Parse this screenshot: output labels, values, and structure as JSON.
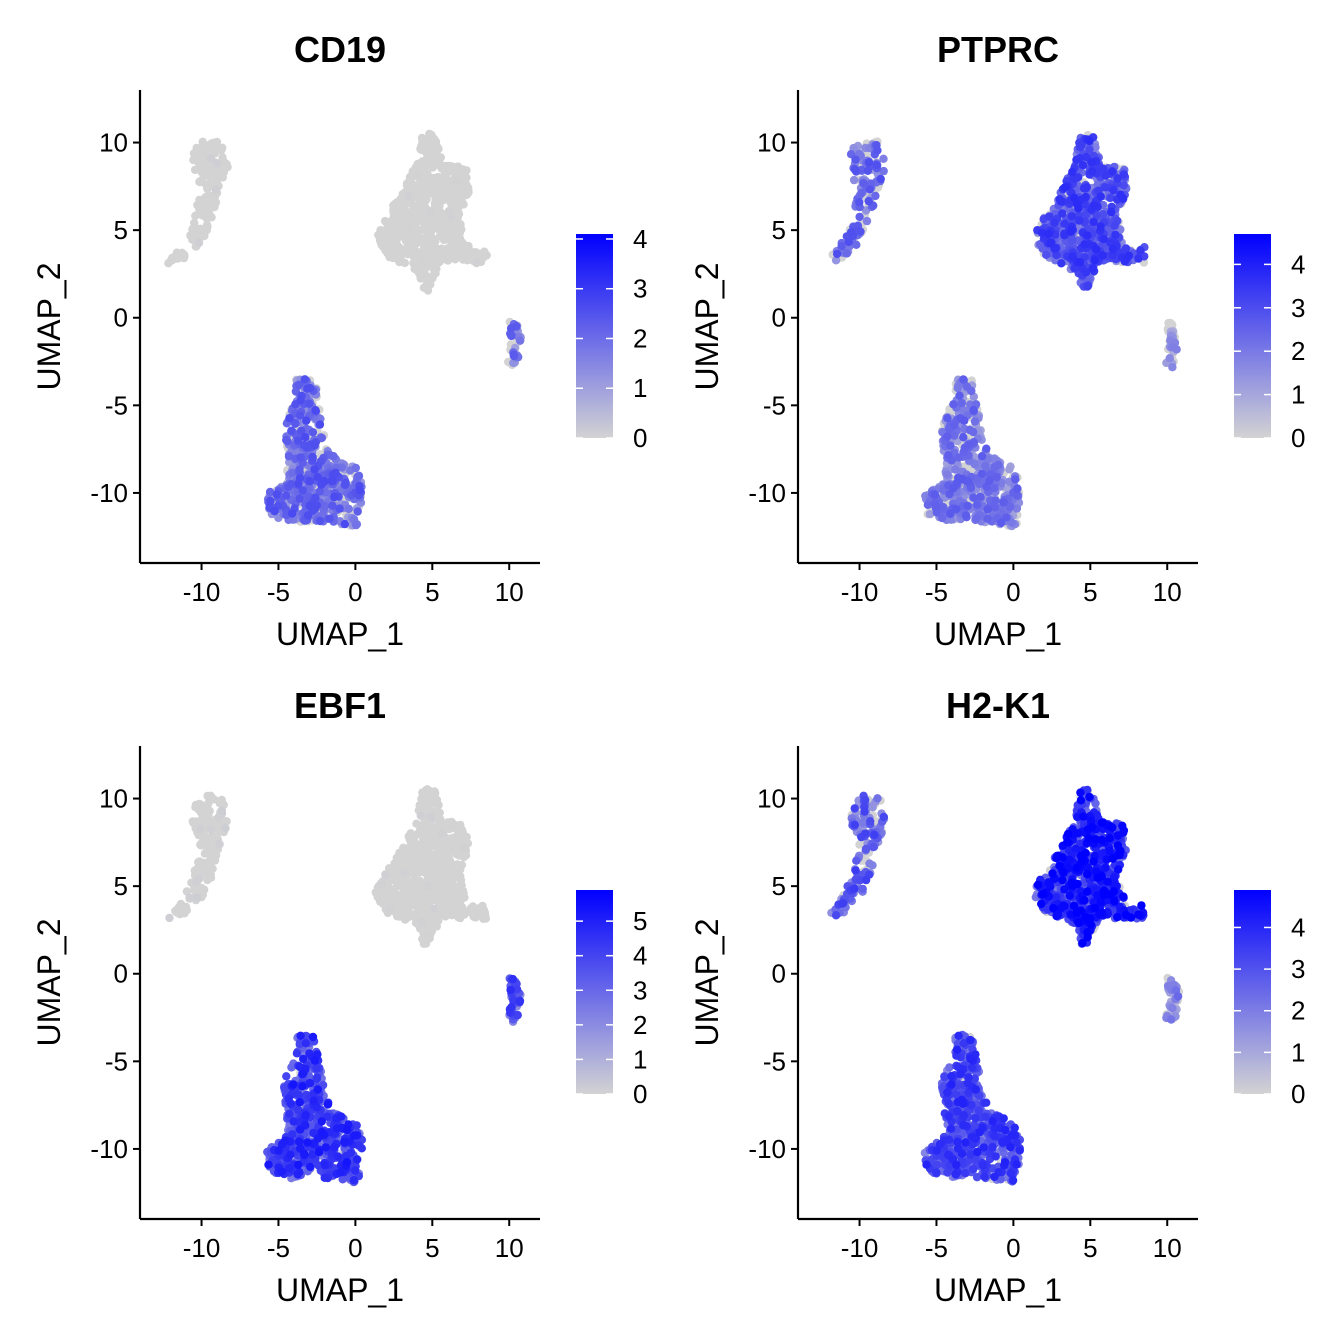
{
  "figure": {
    "background": "#ffffff"
  },
  "chart_data": [
    {
      "type": "scatter",
      "title": "CD19",
      "xlabel": "UMAP_1",
      "ylabel": "UMAP_2",
      "xlim": [
        -14,
        12
      ],
      "ylim": [
        -14,
        13
      ],
      "x_ticks": [
        -10,
        -5,
        0,
        5,
        10
      ],
      "x_tick_labels": [
        "-10",
        "-5",
        "0",
        "5",
        "10"
      ],
      "y_ticks": [
        -10,
        -5,
        0,
        5,
        10
      ],
      "y_tick_labels": [
        "-10",
        "-5",
        "0",
        "5",
        "10"
      ],
      "grid": false,
      "legend": {
        "type": "colorbar",
        "placement": "right",
        "min": 0,
        "max": 4.1,
        "ticks": [
          0,
          1,
          2,
          3,
          4
        ],
        "tick_labels": [
          "0",
          "1",
          "2",
          "3",
          "4"
        ]
      },
      "color_low": "#d3d3d3",
      "color_high": "#0000ff",
      "clusters": [
        {
          "name": "upper-left",
          "x_center": -9.2,
          "y_center": 7.6,
          "expression_level": 0.02
        },
        {
          "name": "upper-right",
          "x_center": 4.8,
          "y_center": 5.6,
          "expression_level": 0.01
        },
        {
          "name": "small-right",
          "x_center": 10.3,
          "y_center": -1.8,
          "expression_level": 0.4
        },
        {
          "name": "lower-center",
          "x_center": -2.7,
          "y_center": -9.2,
          "expression_level": 0.45
        }
      ]
    },
    {
      "type": "scatter",
      "title": "PTPRC",
      "xlabel": "UMAP_1",
      "ylabel": "UMAP_2",
      "xlim": [
        -14,
        12
      ],
      "ylim": [
        -14,
        13
      ],
      "x_ticks": [
        -10,
        -5,
        0,
        5,
        10
      ],
      "x_tick_labels": [
        "-10",
        "-5",
        "0",
        "5",
        "10"
      ],
      "y_ticks": [
        -10,
        -5,
        0,
        5,
        10
      ],
      "y_tick_labels": [
        "-10",
        "-5",
        "0",
        "5",
        "10"
      ],
      "grid": false,
      "legend": {
        "type": "colorbar",
        "placement": "right",
        "min": 0,
        "max": 4.7,
        "ticks": [
          0,
          1,
          2,
          3,
          4
        ],
        "tick_labels": [
          "0",
          "1",
          "2",
          "3",
          "4"
        ]
      },
      "color_low": "#d3d3d3",
      "color_high": "#0000ff",
      "clusters": [
        {
          "name": "upper-left",
          "x_center": -9.2,
          "y_center": 7.6,
          "expression_level": 0.45
        },
        {
          "name": "upper-right",
          "x_center": 4.8,
          "y_center": 5.6,
          "expression_level": 0.55
        },
        {
          "name": "small-right",
          "x_center": 10.3,
          "y_center": -1.8,
          "expression_level": 0.3
        },
        {
          "name": "lower-center",
          "x_center": -2.7,
          "y_center": -9.2,
          "expression_level": 0.4
        }
      ]
    },
    {
      "type": "scatter",
      "title": "EBF1",
      "xlabel": "UMAP_1",
      "ylabel": "UMAP_2",
      "xlim": [
        -14,
        12
      ],
      "ylim": [
        -14,
        13
      ],
      "x_ticks": [
        -10,
        -5,
        0,
        5,
        10
      ],
      "x_tick_labels": [
        "-10",
        "-5",
        "0",
        "5",
        "10"
      ],
      "y_ticks": [
        -10,
        -5,
        0,
        5,
        10
      ],
      "y_tick_labels": [
        "-10",
        "-5",
        "0",
        "5",
        "10"
      ],
      "grid": false,
      "legend": {
        "type": "colorbar",
        "placement": "right",
        "min": 0,
        "max": 5.9,
        "ticks": [
          0,
          1,
          2,
          3,
          4,
          5
        ],
        "tick_labels": [
          "0",
          "1",
          "2",
          "3",
          "4",
          "5"
        ]
      },
      "color_low": "#d3d3d3",
      "color_high": "#0000ff",
      "clusters": [
        {
          "name": "upper-left",
          "x_center": -9.2,
          "y_center": 7.6,
          "expression_level": 0.02
        },
        {
          "name": "upper-right",
          "x_center": 4.8,
          "y_center": 5.6,
          "expression_level": 0.01
        },
        {
          "name": "small-right",
          "x_center": 10.3,
          "y_center": -1.8,
          "expression_level": 0.55
        },
        {
          "name": "lower-center",
          "x_center": -2.7,
          "y_center": -9.2,
          "expression_level": 0.62
        }
      ]
    },
    {
      "type": "scatter",
      "title": "H2-K1",
      "xlabel": "UMAP_1",
      "ylabel": "UMAP_2",
      "xlim": [
        -14,
        12
      ],
      "ylim": [
        -14,
        13
      ],
      "x_ticks": [
        -10,
        -5,
        0,
        5,
        10
      ],
      "x_tick_labels": [
        "-10",
        "-5",
        "0",
        "5",
        "10"
      ],
      "y_ticks": [
        -10,
        -5,
        0,
        5,
        10
      ],
      "y_tick_labels": [
        "-10",
        "-5",
        "0",
        "5",
        "10"
      ],
      "grid": false,
      "legend": {
        "type": "colorbar",
        "placement": "right",
        "min": 0,
        "max": 4.9,
        "ticks": [
          0,
          1,
          2,
          3,
          4
        ],
        "tick_labels": [
          "0",
          "1",
          "2",
          "3",
          "4"
        ]
      },
      "color_low": "#d3d3d3",
      "color_high": "#0000ff",
      "clusters": [
        {
          "name": "upper-left",
          "x_center": -9.2,
          "y_center": 7.6,
          "expression_level": 0.5
        },
        {
          "name": "upper-right",
          "x_center": 4.8,
          "y_center": 5.6,
          "expression_level": 0.72
        },
        {
          "name": "small-right",
          "x_center": 10.3,
          "y_center": -1.8,
          "expression_level": 0.35
        },
        {
          "name": "lower-center",
          "x_center": -2.7,
          "y_center": -9.2,
          "expression_level": 0.58
        }
      ]
    }
  ]
}
